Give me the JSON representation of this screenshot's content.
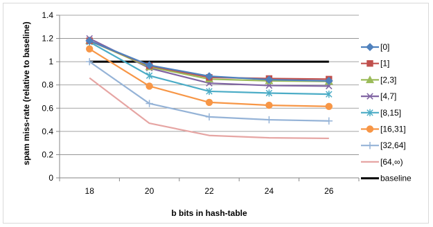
{
  "chart_data": {
    "type": "line",
    "title": "",
    "xlabel": "b bits in hash-table",
    "ylabel": "spam miss-rate (relative to baseline)",
    "x": [
      18,
      20,
      22,
      24,
      26
    ],
    "x_tick_labels": [
      "18",
      "20",
      "22",
      "24",
      "26"
    ],
    "ylim": [
      0,
      1.4
    ],
    "y_tick_labels": [
      "0",
      "0.2",
      "0.4",
      "0.6",
      "0.8",
      "1",
      "1.2",
      "1.4"
    ],
    "grid": "horizontal",
    "legend_position": "right",
    "series": [
      {
        "name": "[0]",
        "values": [
          1.18,
          0.97,
          0.875,
          0.845,
          0.835
        ],
        "color": "#4F81BD",
        "marker": "diamond"
      },
      {
        "name": "[1]",
        "values": [
          1.18,
          0.965,
          0.865,
          0.855,
          0.85
        ],
        "color": "#C0504D",
        "marker": "square"
      },
      {
        "name": "[2,3]",
        "values": [
          1.18,
          0.955,
          0.85,
          0.835,
          0.83
        ],
        "color": "#9BBB59",
        "marker": "triangle"
      },
      {
        "name": "[4,7]",
        "values": [
          1.2,
          0.945,
          0.815,
          0.795,
          0.79
        ],
        "color": "#8064A2",
        "marker": "x"
      },
      {
        "name": "[8,15]",
        "values": [
          1.17,
          0.88,
          0.745,
          0.73,
          0.72
        ],
        "color": "#4BACC6",
        "marker": "star"
      },
      {
        "name": "[16,31]",
        "values": [
          1.11,
          0.79,
          0.65,
          0.625,
          0.615
        ],
        "color": "#F79646",
        "marker": "circle"
      },
      {
        "name": "[32,64]",
        "values": [
          1.0,
          0.64,
          0.525,
          0.5,
          0.49
        ],
        "color": "#95B3D7",
        "marker": "plus"
      },
      {
        "name": "[64,∞)",
        "values": [
          0.86,
          0.47,
          0.365,
          0.345,
          0.34
        ],
        "color": "#E6A5A3",
        "marker": "none"
      },
      {
        "name": "baseline",
        "values": [
          1,
          1,
          1,
          1,
          1
        ],
        "color": "#000000",
        "marker": "none"
      }
    ]
  }
}
